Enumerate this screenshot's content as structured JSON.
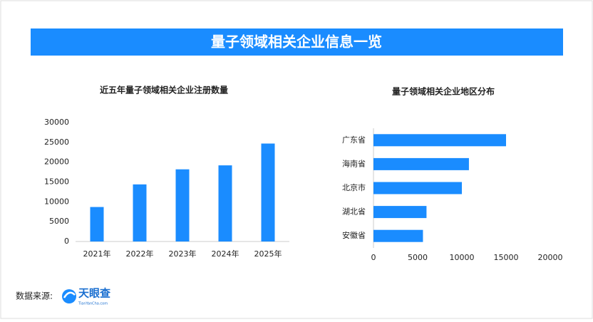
{
  "title": "量子领域相关企业信息一览",
  "chart_data": [
    {
      "type": "bar",
      "title": "近五年量子领域相关企业注册数量",
      "categories": [
        "2021年",
        "2022年",
        "2023年",
        "2024年",
        "2025年"
      ],
      "values": [
        8700,
        14400,
        18200,
        19200,
        24700
      ],
      "color": "#1a8cff",
      "ylim": [
        0,
        30000
      ],
      "yticks": [
        0,
        5000,
        10000,
        15000,
        20000,
        25000,
        30000
      ]
    },
    {
      "type": "hbar",
      "title": "量子领域相关企业地区分布",
      "categories": [
        "广东省",
        "海南省",
        "北京市",
        "湖北省",
        "安徽省"
      ],
      "values": [
        15000,
        10800,
        10000,
        6000,
        5600
      ],
      "color": "#1a8cff",
      "xlim": [
        0,
        20000
      ],
      "xticks": [
        0,
        5000,
        10000,
        15000,
        20000
      ]
    }
  ],
  "source": {
    "label": "数据来源:",
    "brand": "天眼查",
    "site": "TianYanCha.com"
  }
}
